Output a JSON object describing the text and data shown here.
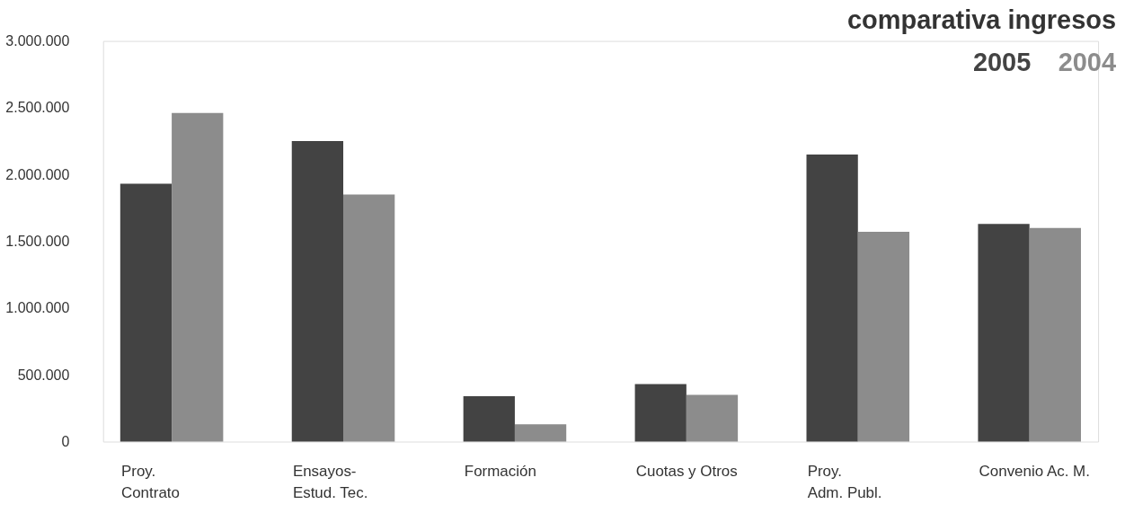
{
  "chart_data": {
    "type": "bar",
    "title": "comparativa ingresos",
    "categories": [
      "Proy.\nContrato",
      "Ensayos-\nEstud. Tec.",
      "Formación",
      "Cuotas y Otros",
      "Proy.\nAdm. Publ.",
      "Convenio Ac. M."
    ],
    "series": [
      {
        "name": "2005",
        "color": "#434343",
        "values": [
          1930000,
          2250000,
          340000,
          430000,
          2150000,
          1630000
        ]
      },
      {
        "name": "2004",
        "color": "#8c8c8c",
        "values": [
          2460000,
          1850000,
          130000,
          350000,
          1570000,
          1600000
        ]
      }
    ],
    "ylim": [
      0,
      3000000
    ],
    "yticks": [
      {
        "value": 0,
        "label": "0"
      },
      {
        "value": 500000,
        "label": "500.000"
      },
      {
        "value": 1000000,
        "label": "1.000.000"
      },
      {
        "value": 1500000,
        "label": "1.500.000"
      },
      {
        "value": 2000000,
        "label": "2.000.000"
      },
      {
        "value": 2500000,
        "label": "2.500.000"
      },
      {
        "value": 3000000,
        "label": "3.000.000"
      }
    ],
    "grid": false,
    "legend": "top right"
  }
}
